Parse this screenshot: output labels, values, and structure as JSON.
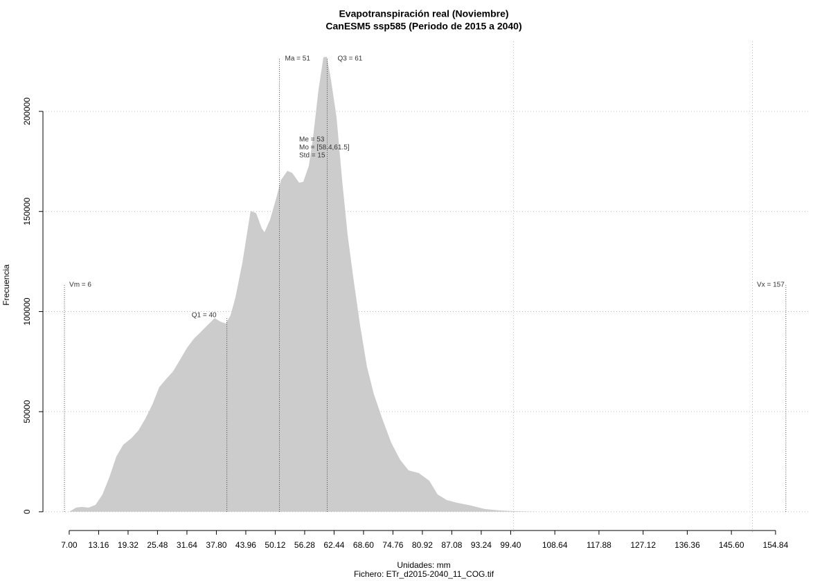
{
  "chart_data": {
    "type": "area",
    "title": "Evapotranspiración real (Noviembre)",
    "subtitle": "CanESM5 ssp585 (Periodo de 2015 a 2040)",
    "x_label": "Unidades: mm",
    "caption": "Fichero: ETr_d2015-2040_11_COG.tif",
    "y_label": "Frecuencia",
    "color": "#cccccc",
    "grid": true,
    "x": [
      7.0,
      8.45,
      9.61,
      11.06,
      12.51,
      13.96,
      15.41,
      16.86,
      18.31,
      20.04,
      21.49,
      22.94,
      24.39,
      25.84,
      27.29,
      28.74,
      30.19,
      31.64,
      33.09,
      34.54,
      35.99,
      37.44,
      38.6,
      39.76,
      40.77,
      41.79,
      43.24,
      44.39,
      44.97,
      46.13,
      47.29,
      47.87,
      49.03,
      50.19,
      51.35,
      52.66,
      53.67,
      55.12,
      55.99,
      57.15,
      58.02,
      59.18,
      60.2,
      60.92,
      61.79,
      62.95,
      64.11,
      65.27,
      66.43,
      67.87,
      69.32,
      70.77,
      72.51,
      74.4,
      76.28,
      78.02,
      80.19,
      82.37,
      84.11,
      85.99,
      88.17,
      91.06,
      93.96,
      96.86,
      99.76,
      105.56,
      156.0
    ],
    "values": [
      0,
      2070,
      2420,
      2070,
      3450,
      8640,
      17300,
      27600,
      33500,
      36800,
      40600,
      46500,
      53400,
      62200,
      66300,
      70100,
      75900,
      81800,
      86400,
      89800,
      93300,
      96700,
      95000,
      94000,
      98100,
      107100,
      124400,
      141600,
      150300,
      149200,
      141600,
      139600,
      145800,
      155400,
      165800,
      170300,
      169300,
      164400,
      164800,
      172700,
      186500,
      210700,
      227000,
      227300,
      216000,
      197000,
      165800,
      138200,
      117400,
      93300,
      72500,
      58700,
      46600,
      34500,
      25900,
      20700,
      19300,
      15500,
      8640,
      5870,
      4490,
      3110,
      1380,
      690,
      345,
      0,
      0
    ],
    "xlim": [
      1.5,
      162.1
    ],
    "ylim": [
      -10400,
      234900
    ],
    "xticks": [
      {
        "value": 7,
        "label": "7.00"
      },
      13.16,
      19.32,
      25.48,
      31.64,
      {
        "value": 37.8,
        "label": "37.80"
      },
      43.96,
      50.12,
      56.28,
      62.44,
      {
        "value": 68.6,
        "label": "68.60"
      },
      74.76,
      80.92,
      87.08,
      93.24,
      {
        "value": 99.4,
        "label": "99.40"
      },
      108.64,
      117.88,
      127.12,
      136.36,
      {
        "value": 145.6,
        "label": "145.60"
      },
      154.84
    ],
    "xgrid": [
      100,
      150
    ],
    "yticks": [
      0,
      50000,
      100000,
      150000,
      200000
    ],
    "stat_lines": [
      {
        "label": "Vm = 6",
        "value": 6
      },
      {
        "label": "Q1 = 40",
        "value": 40
      },
      {
        "label": "Ma = 51",
        "value": 51
      },
      {
        "label": "Q3 = 61",
        "value": 61
      },
      {
        "label": "Vx = 157",
        "value": 157
      }
    ],
    "stat_notes": [
      "Me = 53",
      "Mo = [58.4,61.5]",
      "Std = 15"
    ]
  }
}
